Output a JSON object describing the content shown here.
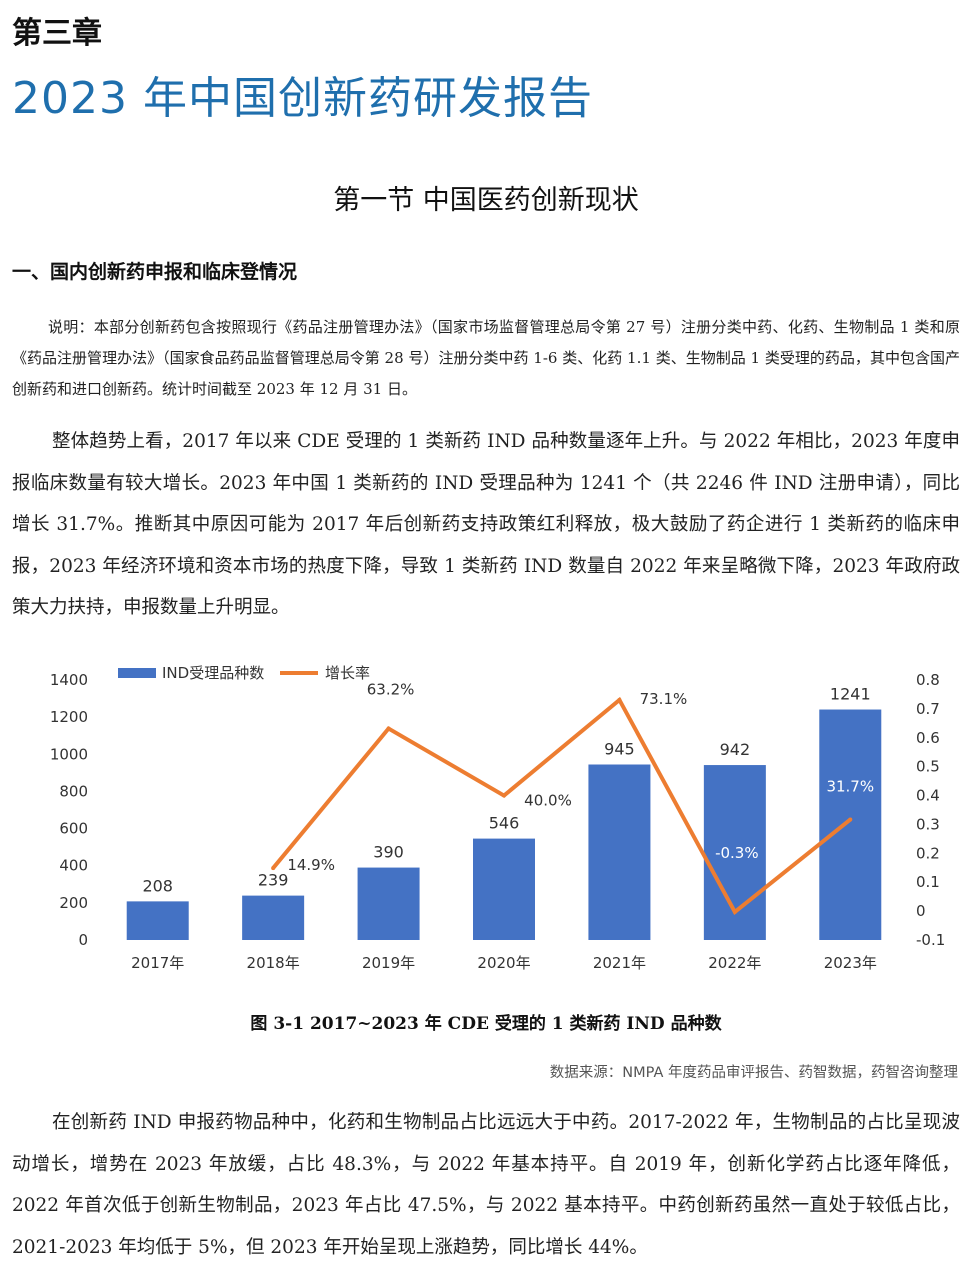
{
  "chapter": "第三章",
  "report_title": "2023 年中国创新药研发报告",
  "section_title": "第一节  中国医药创新现状",
  "subsection_title": "一、国内创新药申报和临床登情况",
  "note": "说明：本部分创新药包含按照现行《药品注册管理办法》（国家市场监督管理总局令第 27 号）注册分类中药、化药、生物制品 1 类和原《药品注册管理办法》（国家食品药品监督管理总局令第 28 号）注册分类中药 1-6 类、化药 1.1 类、生物制品 1 类受理的药品，其中包含国产创新药和进口创新药。统计时间截至 2023 年 12 月 31 日。",
  "paragraph_1": "整体趋势上看，2017 年以来 CDE 受理的 1 类新药 IND 品种数量逐年上升。与 2022 年相比，2023 年度申报临床数量有较大增长。2023 年中国 1 类新药的 IND 受理品种为 1241 个（共 2246 件 IND 注册申请），同比增长 31.7%。推断其中原因可能为 2017 年后创新药支持政策红利释放，极大鼓励了药企进行 1 类新药的临床申报，2023 年经济环境和资本市场的热度下降，导致 1 类新药 IND 数量自 2022 年来呈略微下降，2023 年政府政策大力扶持，申报数量上升明显。",
  "figure_caption": "图 3-1   2017~2023 年 CDE 受理的 1 类新药 IND 品种数",
  "source": "数据来源：NMPA 年度药品审评报告、药智数据，药智咨询整理",
  "paragraph_2": "在创新药 IND 申报药物品种中，化药和生物制品占比远远大于中药。2017-2022 年，生物制品的占比呈现波动增长，增势在 2023 年放缓，占比 48.3%，与 2022 年基本持平。自 2019 年，创新化学药占比逐年降低，2022 年首次低于创新生物制品，2023 年占比 47.5%，与 2022 基本持平。中药创新药虽然一直处于较低占比，2021-2023 年均低于 5%，但 2023 年开始呈现上涨趋势，同比增长 44%。",
  "chart_data": {
    "type": "bar+line",
    "categories": [
      "2017年",
      "2018年",
      "2019年",
      "2020年",
      "2021年",
      "2022年",
      "2023年"
    ],
    "series": [
      {
        "name": "IND受理品种数",
        "type": "bar",
        "axis": "left",
        "color": "#4472c4",
        "values": [
          208,
          239,
          390,
          546,
          945,
          942,
          1241
        ],
        "labels": [
          "208",
          "239",
          "390",
          "546",
          "945",
          "942",
          "1241"
        ]
      },
      {
        "name": "增长率",
        "type": "line",
        "axis": "right",
        "color": "#ed7d31",
        "values": [
          null,
          0.149,
          0.632,
          0.4,
          0.731,
          -0.003,
          0.317
        ],
        "labels": [
          "",
          "14.9%",
          "63.2%",
          "40.0%",
          "73.1%",
          "-0.3%",
          "31.7%"
        ]
      }
    ],
    "y_left": {
      "min": 0,
      "max": 1400,
      "ticks": [
        "0",
        "200",
        "400",
        "600",
        "800",
        "1000",
        "1200",
        "1400"
      ]
    },
    "y_right": {
      "min": -0.1,
      "max": 0.8,
      "ticks": [
        "-0.1",
        "0",
        "0.1",
        "0.2",
        "0.3",
        "0.4",
        "0.5",
        "0.6",
        "0.7",
        "0.8"
      ]
    },
    "legend_position": "top-left",
    "grid": false
  }
}
